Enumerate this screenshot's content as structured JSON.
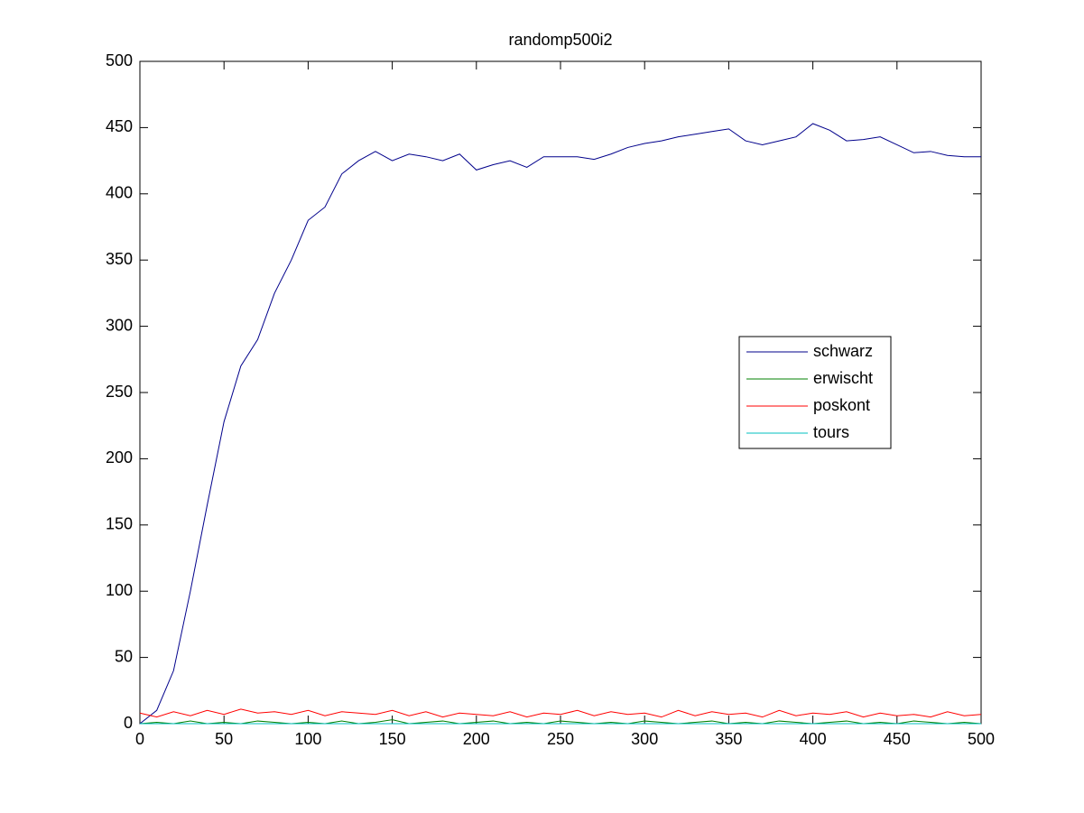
{
  "chart_data": {
    "type": "line",
    "title": "randomp500i2",
    "x": [
      0,
      10,
      20,
      30,
      40,
      50,
      60,
      70,
      80,
      90,
      100,
      110,
      120,
      130,
      140,
      150,
      160,
      170,
      180,
      190,
      200,
      210,
      220,
      230,
      240,
      250,
      260,
      270,
      280,
      290,
      300,
      310,
      320,
      330,
      340,
      350,
      360,
      370,
      380,
      390,
      400,
      410,
      420,
      430,
      440,
      450,
      460,
      470,
      480,
      490,
      500
    ],
    "series": [
      {
        "name": "schwarz",
        "color": "#00008b",
        "values": [
          0,
          10,
          40,
          100,
          165,
          228,
          270,
          290,
          325,
          350,
          380,
          390,
          415,
          425,
          432,
          425,
          430,
          428,
          425,
          430,
          418,
          422,
          425,
          420,
          428,
          428,
          428,
          426,
          430,
          435,
          438,
          440,
          443,
          445,
          447,
          449,
          440,
          437,
          440,
          443,
          453,
          448,
          440,
          441,
          443,
          437,
          431,
          432,
          429,
          428,
          428
        ]
      },
      {
        "name": "erwischt",
        "color": "#008000",
        "values": [
          0,
          1,
          0,
          2,
          0,
          1,
          0,
          2,
          1,
          0,
          1,
          0,
          2,
          0,
          1,
          3,
          0,
          1,
          2,
          0,
          1,
          2,
          0,
          1,
          0,
          2,
          1,
          0,
          1,
          0,
          2,
          1,
          0,
          1,
          2,
          0,
          1,
          0,
          2,
          1,
          0,
          1,
          2,
          0,
          1,
          0,
          2,
          1,
          0,
          1,
          0
        ]
      },
      {
        "name": "poskont",
        "color": "#ff0000",
        "values": [
          8,
          5,
          9,
          6,
          10,
          7,
          11,
          8,
          9,
          7,
          10,
          6,
          9,
          8,
          7,
          10,
          6,
          9,
          5,
          8,
          7,
          6,
          9,
          5,
          8,
          7,
          10,
          6,
          9,
          7,
          8,
          5,
          10,
          6,
          9,
          7,
          8,
          5,
          10,
          6,
          8,
          7,
          9,
          5,
          8,
          6,
          7,
          5,
          9,
          6,
          7
        ]
      },
      {
        "name": "tours",
        "color": "#00bfbf",
        "values": [
          0,
          0,
          0,
          0,
          0,
          0,
          0,
          0,
          0,
          0,
          0,
          0,
          0,
          0,
          0,
          0,
          0,
          0,
          0,
          0,
          0,
          0,
          0,
          0,
          0,
          0,
          0,
          0,
          0,
          0,
          0,
          0,
          0,
          0,
          0,
          0,
          0,
          0,
          0,
          0,
          0,
          0,
          0,
          0,
          0,
          0,
          0,
          0,
          0,
          0,
          0
        ]
      }
    ],
    "xlim": [
      0,
      500
    ],
    "xticks": [
      0,
      50,
      100,
      150,
      200,
      250,
      300,
      350,
      400,
      450,
      500
    ],
    "ylim": [
      0,
      500
    ],
    "yticks": [
      0,
      50,
      100,
      150,
      200,
      250,
      300,
      350,
      400,
      450,
      500
    ],
    "grid": false,
    "legend": "east"
  }
}
